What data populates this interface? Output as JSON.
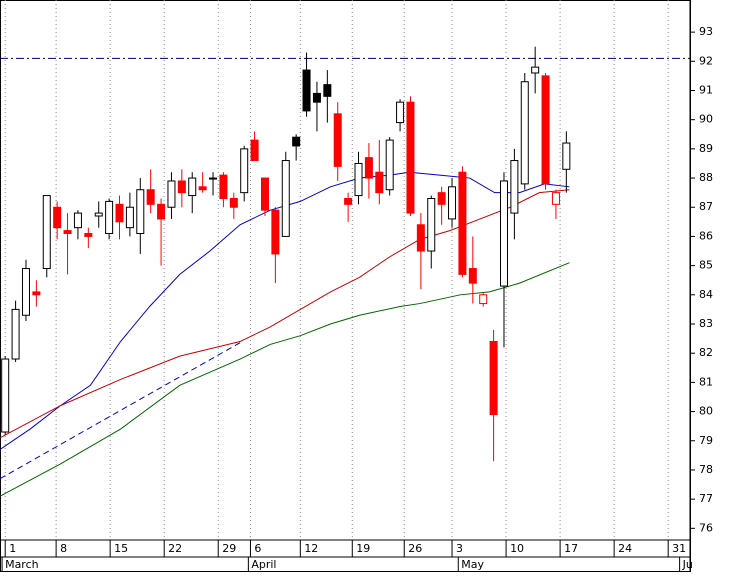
{
  "chart_data": {
    "type": "candlestick",
    "xlim": [
      -0.5,
      65.9
    ],
    "ylim": [
      75.6,
      94.1
    ],
    "yticks": [
      76,
      77,
      78,
      79,
      80,
      81,
      82,
      83,
      84,
      85,
      86,
      87,
      88,
      89,
      90,
      91,
      92,
      93
    ],
    "xticks": [
      {
        "value": 0,
        "label": "1"
      },
      {
        "value": 4.9,
        "label": "8"
      },
      {
        "value": 10.1,
        "label": "15"
      },
      {
        "value": 15.3,
        "label": "22"
      },
      {
        "value": 20.5,
        "label": "29"
      },
      {
        "value": 23.6,
        "label": "6"
      },
      {
        "value": 28.4,
        "label": "12"
      },
      {
        "value": 33.4,
        "label": "19"
      },
      {
        "value": 38.4,
        "label": "26"
      },
      {
        "value": 43,
        "label": "3"
      },
      {
        "value": 48.2,
        "label": "10"
      },
      {
        "value": 53.4,
        "label": "17"
      },
      {
        "value": 58.6,
        "label": "24"
      },
      {
        "value": 63.8,
        "label": "31"
      }
    ],
    "month_labels": [
      {
        "value": -0.3,
        "label": "March"
      },
      {
        "value": 23.4,
        "label": "April"
      },
      {
        "value": 43.6,
        "label": "May"
      },
      {
        "value": 64.9,
        "label": "Ju"
      }
    ],
    "grid": true,
    "open": [
      79.3,
      81.8,
      83.3,
      84.1,
      84.9,
      87.0,
      86.2,
      86.3,
      86.1,
      86.7,
      86.1,
      87.1,
      86.3,
      86.1,
      87.6,
      87.1,
      87.0,
      87.9,
      87.4,
      87.7,
      88.0,
      88.1,
      87.3,
      87.5,
      89.3,
      88.0,
      86.9,
      86.0,
      89.4,
      91.7,
      90.9,
      91.2,
      90.2,
      87.3,
      87.4,
      88.7,
      88.2,
      87.6,
      89.9,
      90.6,
      86.4,
      85.5,
      87.5,
      86.6,
      88.2,
      84.9,
      83.7,
      82.4,
      84.3,
      86.8,
      87.8,
      91.6,
      91.5,
      87.1,
      88.3
    ],
    "high": [
      81.9,
      83.8,
      85.2,
      84.5,
      87.4,
      87.2,
      86.8,
      86.9,
      86.3,
      87.2,
      87.3,
      87.4,
      87.5,
      88.0,
      88.3,
      87.3,
      88.2,
      88.3,
      88.2,
      88.2,
      88.2,
      88.2,
      87.5,
      89.1,
      89.6,
      88.0,
      87.0,
      88.9,
      89.5,
      92.3,
      91.3,
      91.7,
      90.6,
      87.5,
      88.9,
      89.2,
      89.3,
      89.4,
      90.7,
      90.8,
      86.8,
      87.4,
      87.7,
      88.0,
      88.4,
      86.0,
      84.1,
      82.8,
      88.2,
      89.0,
      91.6,
      92.5,
      91.6,
      87.6,
      89.6
    ],
    "low": [
      79.2,
      81.7,
      83.1,
      83.6,
      84.6,
      85.9,
      84.7,
      85.9,
      85.6,
      86.3,
      85.9,
      85.9,
      86.0,
      85.4,
      86.8,
      85.0,
      86.6,
      87.0,
      86.8,
      87.5,
      87.4,
      87.0,
      86.6,
      87.2,
      88.6,
      86.7,
      84.4,
      86.0,
      88.6,
      90.1,
      89.6,
      89.9,
      87.9,
      86.5,
      87.1,
      87.3,
      87.1,
      87.4,
      89.6,
      86.7,
      84.2,
      84.9,
      86.4,
      86.3,
      84.6,
      83.7,
      83.6,
      78.3,
      82.2,
      85.9,
      87.6,
      90.9,
      87.6,
      86.6,
      87.5
    ],
    "close": [
      81.8,
      83.5,
      84.9,
      84.0,
      87.4,
      86.3,
      86.1,
      86.8,
      86.0,
      86.8,
      87.2,
      86.5,
      87.0,
      87.6,
      87.1,
      86.6,
      87.9,
      87.5,
      88.0,
      87.6,
      88.0,
      87.3,
      87.0,
      89.0,
      88.6,
      86.9,
      85.4,
      88.6,
      89.1,
      90.3,
      90.6,
      90.8,
      88.4,
      87.1,
      88.5,
      88.0,
      87.5,
      89.3,
      90.6,
      86.8,
      85.5,
      87.3,
      87.1,
      87.7,
      84.7,
      84.4,
      84.0,
      79.9,
      87.9,
      88.6,
      91.3,
      91.8,
      87.8,
      87.5,
      89.2
    ],
    "colors": [
      "#ffffff",
      "#ffffff",
      "#ffffff",
      "#ff0000",
      "#ffffff",
      "#ff0000",
      "#ff0000",
      "#ffffff",
      "#ff0000",
      "#ffffff",
      "#ffffff",
      "#ff0000",
      "#ffffff",
      "#ffffff",
      "#ff0000",
      "#ff0000",
      "#ffffff",
      "#ff0000",
      "#ffffff",
      "#ff0000",
      "#000000",
      "#ff0000",
      "#ff0000",
      "#ffffff",
      "#ff0000",
      "#ff0000",
      "#ff0000",
      "#ffffff",
      "#000000",
      "#000000",
      "#000000",
      "#000000",
      "#ff0000",
      "#ff0000",
      "#ffffff",
      "#ff0000",
      "#ff0000",
      "#ffffff",
      "#ffffff",
      "#ff0000",
      "#ff0000",
      "#ffffff",
      "#ff0000",
      "#ffffff",
      "#ff0000",
      "#ff0000",
      "#ffffff",
      "#ff0000",
      "#ffffff",
      "#ffffff",
      "#ffffff",
      "#ffffff",
      "#ff0000",
      "#ffffff",
      "#ffffff"
    ],
    "edge_colors": [
      "#000000",
      "#000000",
      "#000000",
      "#ff0000",
      "#000000",
      "#ff0000",
      "#ff0000",
      "#000000",
      "#ff0000",
      "#000000",
      "#000000",
      "#ff0000",
      "#000000",
      "#000000",
      "#ff0000",
      "#ff0000",
      "#000000",
      "#ff0000",
      "#000000",
      "#ff0000",
      "#000000",
      "#ff0000",
      "#ff0000",
      "#000000",
      "#ff0000",
      "#ff0000",
      "#ff0000",
      "#000000",
      "#000000",
      "#000000",
      "#000000",
      "#000000",
      "#ff0000",
      "#ff0000",
      "#000000",
      "#ff0000",
      "#ff0000",
      "#000000",
      "#000000",
      "#ff0000",
      "#ff0000",
      "#000000",
      "#ff0000",
      "#000000",
      "#ff0000",
      "#ff0000",
      "#ff0000",
      "#ff0000",
      "#000000",
      "#000000",
      "#000000",
      "#000000",
      "#ff0000",
      "#ff0000",
      "#000000"
    ],
    "lines": [
      {
        "color": "#0000cc",
        "x": [
          -0.5,
          2.4,
          5.3,
          8.2,
          11.1,
          13.9,
          16.8,
          19.7,
          22.6,
          25.5,
          28.4,
          31.3,
          34.1,
          37,
          38.9,
          41.8,
          44.7,
          47.1,
          49.5,
          51.9,
          54.3
        ],
        "values": [
          78.7,
          79.4,
          80.2,
          80.9,
          82.4,
          83.6,
          84.7,
          85.5,
          86.4,
          86.9,
          87.2,
          87.7,
          88.0,
          88.1,
          88.2,
          88.1,
          88.0,
          87.5,
          87.5,
          87.8,
          87.7
        ]
      },
      {
        "color": "#cc0000",
        "x": [
          -0.5,
          5.3,
          11.1,
          16.8,
          22.6,
          25.5,
          28.4,
          31.3,
          34.1,
          37,
          39.9,
          42.8,
          45.7,
          48.6,
          51.4,
          54.3
        ],
        "values": [
          79.1,
          80.2,
          81.1,
          81.9,
          82.4,
          82.9,
          83.5,
          84.1,
          84.6,
          85.3,
          85.9,
          86.2,
          86.6,
          87.0,
          87.5,
          87.6
        ]
      },
      {
        "color": "#006600",
        "x": [
          -0.5,
          5.3,
          11.1,
          16.8,
          22.6,
          25.5,
          28.4,
          31.3,
          34.1,
          38,
          39.9,
          43.8,
          46.6,
          49.5,
          54.3
        ],
        "values": [
          77.1,
          78.2,
          79.4,
          80.9,
          81.8,
          82.3,
          82.6,
          83.0,
          83.3,
          83.6,
          83.7,
          84.0,
          84.1,
          84.4,
          85.1
        ]
      },
      {
        "color": "#0000cc",
        "dash": "6,4",
        "x": [
          -0.5,
          22.8
        ],
        "values": [
          77.7,
          82.4
        ]
      },
      {
        "color": "#000066",
        "dash": "8,3,2,3",
        "x": [
          -0.5,
          65.9
        ],
        "values": [
          92.1,
          92.1
        ]
      }
    ]
  }
}
